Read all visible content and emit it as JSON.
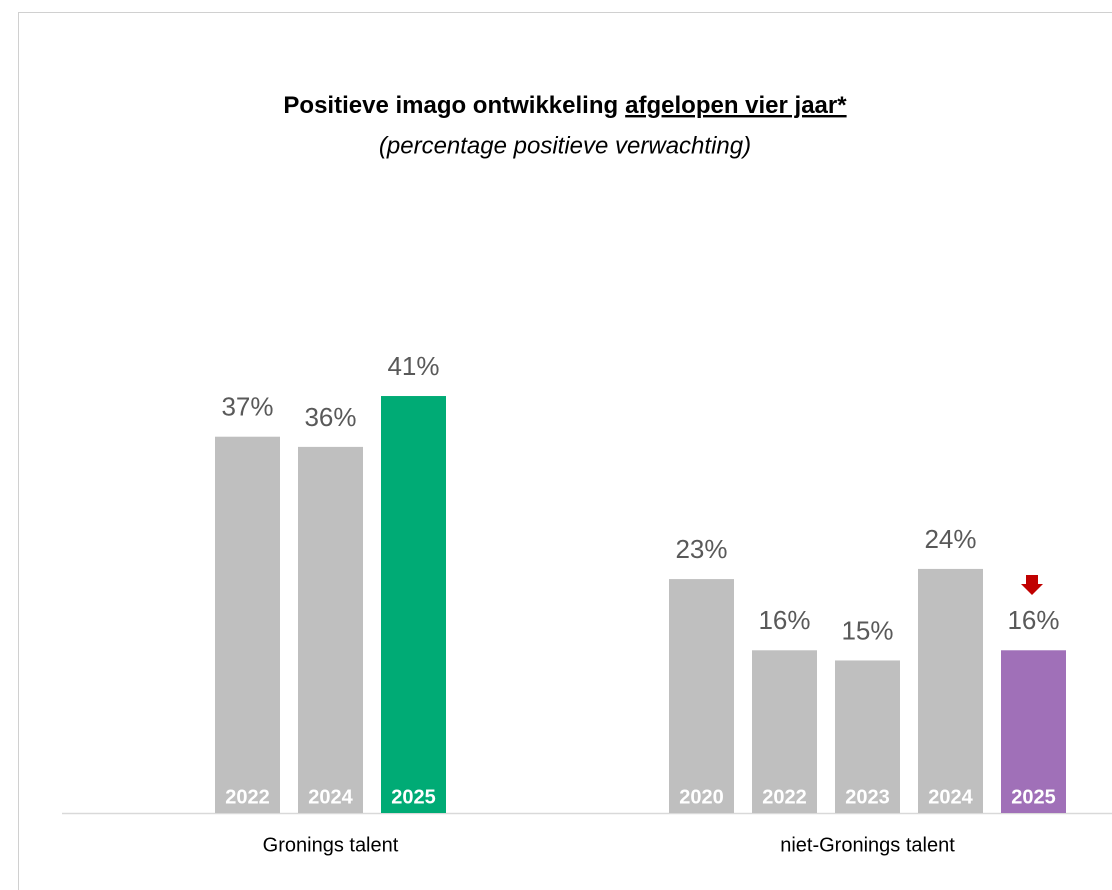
{
  "chart_data": {
    "type": "bar",
    "title": [
      "Positieve imago ontwikkeling",
      "afgelopen vier jaar*"
    ],
    "subtitle": "(percentage positieve verwachting)",
    "groups": [
      {
        "name": "Gronings talent",
        "categories": [
          "2022",
          "2024",
          "2025"
        ],
        "values": [
          37,
          36,
          41
        ],
        "value_labels": [
          "37%",
          "36%",
          "41%"
        ],
        "colors": [
          "#bfbfbf",
          "#bfbfbf",
          "#00ab75"
        ]
      },
      {
        "name": "niet-Gronings talent",
        "categories": [
          "2020",
          "2022",
          "2023",
          "2024",
          "2025"
        ],
        "values": [
          23,
          16,
          15,
          24,
          16
        ],
        "value_labels": [
          "23%",
          "16%",
          "15%",
          "24%",
          "16%"
        ],
        "colors": [
          "#bfbfbf",
          "#bfbfbf",
          "#bfbfbf",
          "#bfbfbf",
          "#a070b8"
        ]
      }
    ]
  }
}
